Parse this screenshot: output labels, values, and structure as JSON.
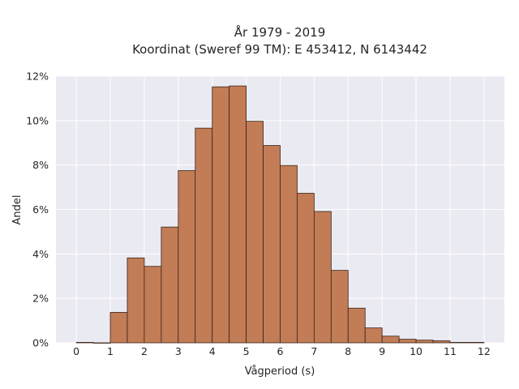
{
  "chart_data": {
    "type": "bar",
    "title_line1": "År 1979 - 2019",
    "title_line2": "Koordinat (Sweref 99 TM): E 453412, N 6143442",
    "xlabel": "Vågperiod (s)",
    "ylabel": "Andel",
    "xlim": [
      -0.6,
      12.6
    ],
    "ylim": [
      0,
      12
    ],
    "x_ticks": [
      "0",
      "1",
      "2",
      "3",
      "4",
      "5",
      "6",
      "7",
      "8",
      "9",
      "10",
      "11",
      "12"
    ],
    "y_ticks": [
      "0%",
      "2%",
      "4%",
      "6%",
      "8%",
      "10%",
      "12%"
    ],
    "bin_width": 0.5,
    "bin_starts": [
      0,
      0.5,
      1,
      1.5,
      2,
      2.5,
      3,
      3.5,
      4,
      4.5,
      5,
      5.5,
      6,
      6.5,
      7,
      7.5,
      8,
      8.5,
      9,
      9.5,
      10,
      10.5,
      11,
      11.5
    ],
    "values": [
      0.02,
      0.0,
      1.37,
      3.82,
      3.44,
      5.21,
      7.75,
      9.66,
      11.52,
      11.56,
      9.97,
      8.88,
      7.98,
      6.73,
      5.91,
      3.26,
      1.56,
      0.67,
      0.3,
      0.16,
      0.12,
      0.09,
      0.02,
      0.02
    ],
    "grid": true,
    "colors": {
      "bar": "#c27c56",
      "bar_edge": "#3a2418",
      "background": "#eaeaf2",
      "grid": "#ffffff"
    }
  }
}
